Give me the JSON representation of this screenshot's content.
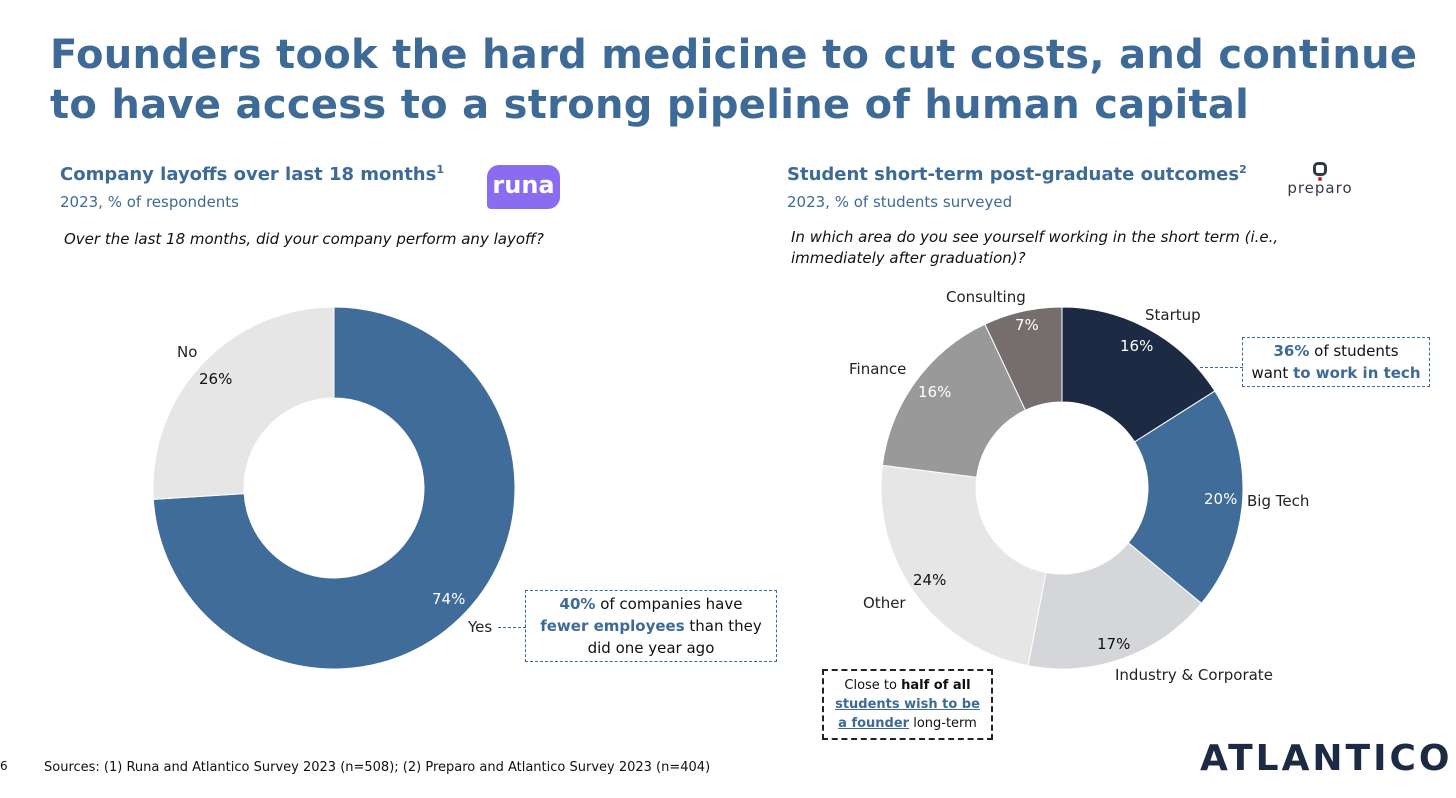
{
  "title_line1": "Founders took the hard medicine to cut costs, and continue",
  "title_line2": "to have access to a strong pipeline of human capital",
  "left": {
    "heading": "Company layoffs over last 18 months",
    "sup": "1",
    "subheading": "2023, % of respondents",
    "logo": "runa",
    "question": "Over the last 18 months, did your company perform any layoff?",
    "callout": {
      "bold": "40%",
      "t1": " of companies have",
      "bold2": "fewer employees",
      "t2": " than they",
      "t3": "did one year ago"
    }
  },
  "right": {
    "heading": "Student short-term post-graduate outcomes",
    "sup": "2",
    "subheading": "2023, % of students surveyed",
    "logo": "preparo",
    "question_line1": "In which area do you see yourself working in the short term (i.e.,",
    "question_line2": "immediately after graduation)?",
    "callout": {
      "bold": "36%",
      "t1": " of students",
      "t2": "want ",
      "bold2": "to work in tech"
    },
    "callout2": {
      "t1": "Close to ",
      "bold": "half of all",
      "u1": "students wish to be",
      "u2": "a founder",
      "t2": " long-term"
    }
  },
  "chart_data": [
    {
      "type": "pie",
      "donut": true,
      "title": "Company layoffs over last 18 months",
      "categories": [
        "Yes",
        "No"
      ],
      "values": [
        74,
        26
      ],
      "labels": [
        "74%",
        "26%"
      ],
      "colors": [
        "#3f6c98",
        "#e6e6e6"
      ]
    },
    {
      "type": "pie",
      "donut": true,
      "title": "Student short-term post-graduate outcomes",
      "categories": [
        "Startup",
        "Big Tech",
        "Industry & Corporate",
        "Other",
        "Finance",
        "Consulting"
      ],
      "values": [
        16,
        20,
        17,
        24,
        16,
        7
      ],
      "labels": [
        "16%",
        "20%",
        "17%",
        "24%",
        "16%",
        "7%"
      ],
      "colors": [
        "#1c2a44",
        "#3f6c98",
        "#d5d6da",
        "#e6e6e6",
        "#999999",
        "#756e6d"
      ]
    }
  ],
  "footer": {
    "page": "6",
    "sources": "Sources: (1) Runa and Atlantico Survey 2023 (n=508); (2) Preparo and Atlantico Survey 2023 (n=404)",
    "brand": "ATLANTICO"
  }
}
